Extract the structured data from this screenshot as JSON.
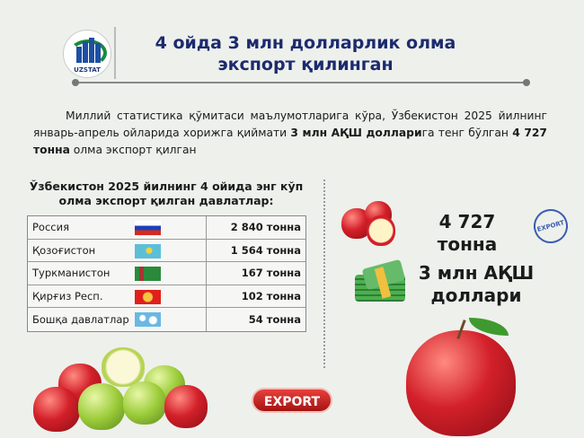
{
  "header": {
    "logo_text": "UZSTAT",
    "title_line1": "4 ойда 3 млн долларлик олма",
    "title_line2": "экспорт қилинган"
  },
  "intro": {
    "part1": "Миллий статистика қўмитаси маълумотларига кўра, Ўзбекистон 2025 йилнинг январь-апрель ойларида хорижга қиймати ",
    "bold1": "3 млн АҚШ доллари",
    "part2": "га тенг бўлган ",
    "bold2": "4 727 тонна",
    "part3": " олма экспорт қилган"
  },
  "table": {
    "heading_line1": "Ўзбекистон 2025 йилнинг 4 ойида энг кўп",
    "heading_line2": "олма экспорт қилган давлатлар:",
    "rows": [
      {
        "country": "Россия",
        "flag": "russia-flag",
        "value": "2 840 тонна"
      },
      {
        "country": "Қозоғистон",
        "flag": "kazakhstan-flag",
        "value": "1 564 тонна"
      },
      {
        "country": "Туркманистон",
        "flag": "turkmenistan-flag",
        "value": "167 тонна"
      },
      {
        "country": "Қирғиз Респ.",
        "flag": "kyrgyzstan-flag",
        "value": "102 тонна"
      },
      {
        "country": "Бошқа давлатлар",
        "flag": "world-map-icon",
        "value": "54 тонна"
      }
    ]
  },
  "stats": {
    "weight": "4 727 тонна",
    "value_line1": "3 млн АҚШ",
    "value_line2": "доллари",
    "stamp_text": "EXPORT"
  },
  "button": {
    "label": "EXPORT"
  },
  "colors": {
    "title": "#1c2b6e",
    "button": "#c8201c"
  }
}
